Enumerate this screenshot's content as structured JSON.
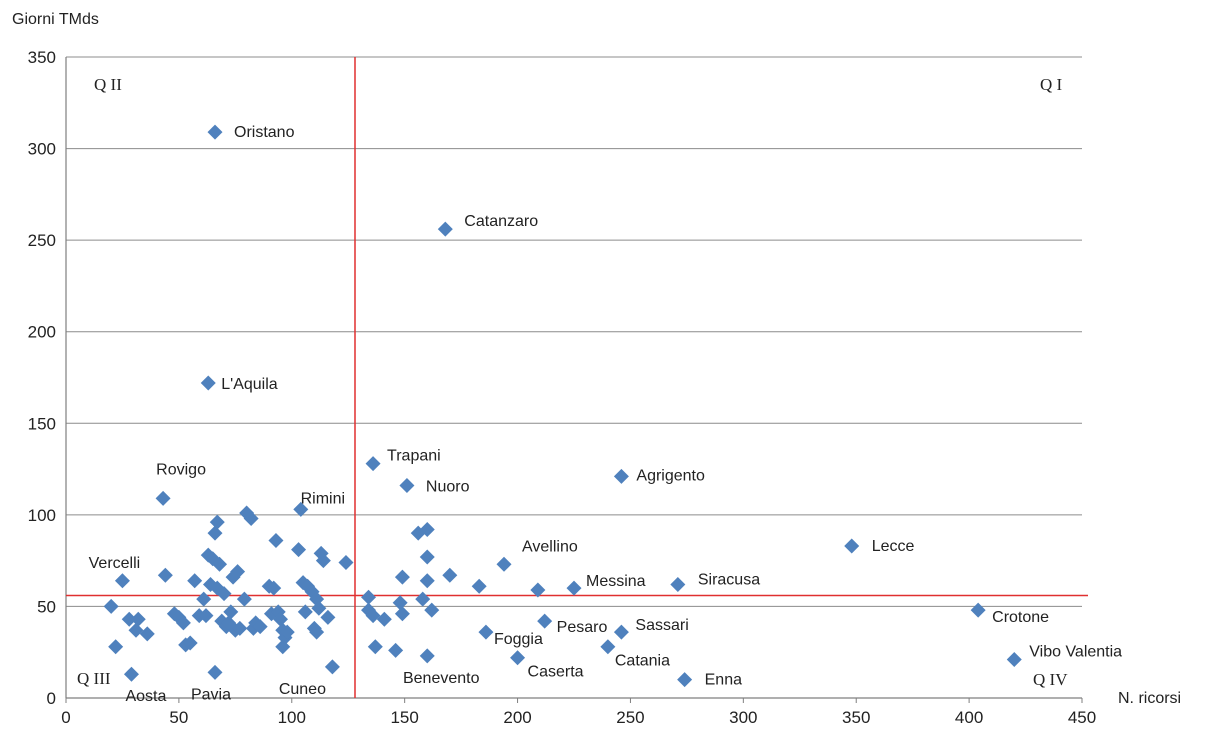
{
  "chart_data": {
    "type": "scatter",
    "ylabel": "Giorni TMds",
    "xlabel": "N. ricorsi",
    "xlim": [
      0,
      450
    ],
    "ylim": [
      0,
      350
    ],
    "x_ticks": [
      0,
      50,
      100,
      150,
      200,
      250,
      300,
      350,
      400,
      450
    ],
    "y_ticks": [
      0,
      50,
      100,
      150,
      200,
      250,
      300,
      350
    ],
    "grid": "horizontal",
    "marker": "diamond",
    "colors": {
      "points": "#4f81bd",
      "reference_lines": "#e03030",
      "grid": "#8c8c8c"
    },
    "reference_lines": {
      "vertical_x": 128,
      "horizontal_y": 56
    },
    "quadrant_labels": {
      "q1": "Q I",
      "q2": "Q II",
      "q3": "Q III",
      "q4": "Q IV"
    },
    "labeled_points": [
      {
        "label": "Oristano",
        "x": 66,
        "y": 309
      },
      {
        "label": "Catanzaro",
        "x": 168,
        "y": 256
      },
      {
        "label": "L'Aquila",
        "x": 63,
        "y": 172
      },
      {
        "label": "Trapani",
        "x": 136,
        "y": 128
      },
      {
        "label": "Nuoro",
        "x": 151,
        "y": 116
      },
      {
        "label": "Agrigento",
        "x": 246,
        "y": 121
      },
      {
        "label": "Rovigo",
        "x": 43,
        "y": 109
      },
      {
        "label": "Rimini",
        "x": 104,
        "y": 103
      },
      {
        "label": "Lecce",
        "x": 348,
        "y": 83
      },
      {
        "label": "Avellino",
        "x": 194,
        "y": 73
      },
      {
        "label": "Vercelli",
        "x": 25,
        "y": 64
      },
      {
        "label": "Messina",
        "x": 225,
        "y": 60
      },
      {
        "label": "Siracusa",
        "x": 271,
        "y": 62
      },
      {
        "label": "Crotone",
        "x": 404,
        "y": 48
      },
      {
        "label": "Pesaro",
        "x": 212,
        "y": 42
      },
      {
        "label": "Sassari",
        "x": 246,
        "y": 36
      },
      {
        "label": "Foggia",
        "x": 186,
        "y": 36
      },
      {
        "label": "Catania",
        "x": 240,
        "y": 28
      },
      {
        "label": "Vibo Valentia",
        "x": 420,
        "y": 21
      },
      {
        "label": "Caserta",
        "x": 200,
        "y": 22
      },
      {
        "label": "Benevento",
        "x": 160,
        "y": 23
      },
      {
        "label": "Enna",
        "x": 274,
        "y": 10
      },
      {
        "label": "Cuneo",
        "x": 118,
        "y": 17
      },
      {
        "label": "Aosta",
        "x": 29,
        "y": 13
      },
      {
        "label": "Pavia",
        "x": 66,
        "y": 14
      }
    ],
    "unlabeled_points": [
      {
        "x": 20,
        "y": 50
      },
      {
        "x": 22,
        "y": 28
      },
      {
        "x": 28,
        "y": 43
      },
      {
        "x": 31,
        "y": 37
      },
      {
        "x": 32,
        "y": 43
      },
      {
        "x": 36,
        "y": 35
      },
      {
        "x": 44,
        "y": 67
      },
      {
        "x": 48,
        "y": 46
      },
      {
        "x": 50,
        "y": 44
      },
      {
        "x": 52,
        "y": 41
      },
      {
        "x": 53,
        "y": 29
      },
      {
        "x": 55,
        "y": 30
      },
      {
        "x": 57,
        "y": 64
      },
      {
        "x": 59,
        "y": 45
      },
      {
        "x": 61,
        "y": 54
      },
      {
        "x": 62,
        "y": 45
      },
      {
        "x": 63,
        "y": 78
      },
      {
        "x": 64,
        "y": 62
      },
      {
        "x": 65,
        "y": 76
      },
      {
        "x": 66,
        "y": 90
      },
      {
        "x": 67,
        "y": 96
      },
      {
        "x": 67,
        "y": 60
      },
      {
        "x": 68,
        "y": 73
      },
      {
        "x": 69,
        "y": 42
      },
      {
        "x": 70,
        "y": 57
      },
      {
        "x": 71,
        "y": 39
      },
      {
        "x": 72,
        "y": 41
      },
      {
        "x": 73,
        "y": 47
      },
      {
        "x": 74,
        "y": 66
      },
      {
        "x": 75,
        "y": 37
      },
      {
        "x": 76,
        "y": 69
      },
      {
        "x": 77,
        "y": 38
      },
      {
        "x": 79,
        "y": 54
      },
      {
        "x": 80,
        "y": 101
      },
      {
        "x": 82,
        "y": 98
      },
      {
        "x": 83,
        "y": 38
      },
      {
        "x": 84,
        "y": 41
      },
      {
        "x": 86,
        "y": 39
      },
      {
        "x": 90,
        "y": 61
      },
      {
        "x": 91,
        "y": 46
      },
      {
        "x": 92,
        "y": 60
      },
      {
        "x": 93,
        "y": 86
      },
      {
        "x": 94,
        "y": 47
      },
      {
        "x": 95,
        "y": 43
      },
      {
        "x": 96,
        "y": 37
      },
      {
        "x": 96,
        "y": 28
      },
      {
        "x": 97,
        "y": 33
      },
      {
        "x": 98,
        "y": 36
      },
      {
        "x": 103,
        "y": 81
      },
      {
        "x": 105,
        "y": 63
      },
      {
        "x": 106,
        "y": 47
      },
      {
        "x": 107,
        "y": 61
      },
      {
        "x": 109,
        "y": 58
      },
      {
        "x": 110,
        "y": 38
      },
      {
        "x": 111,
        "y": 54
      },
      {
        "x": 111,
        "y": 36
      },
      {
        "x": 112,
        "y": 49
      },
      {
        "x": 113,
        "y": 79
      },
      {
        "x": 114,
        "y": 75
      },
      {
        "x": 116,
        "y": 44
      },
      {
        "x": 124,
        "y": 74
      },
      {
        "x": 134,
        "y": 55
      },
      {
        "x": 134,
        "y": 48
      },
      {
        "x": 136,
        "y": 45
      },
      {
        "x": 137,
        "y": 28
      },
      {
        "x": 141,
        "y": 43
      },
      {
        "x": 146,
        "y": 26
      },
      {
        "x": 148,
        "y": 52
      },
      {
        "x": 149,
        "y": 66
      },
      {
        "x": 149,
        "y": 46
      },
      {
        "x": 156,
        "y": 90
      },
      {
        "x": 158,
        "y": 54
      },
      {
        "x": 160,
        "y": 92
      },
      {
        "x": 160,
        "y": 77
      },
      {
        "x": 160,
        "y": 64
      },
      {
        "x": 162,
        "y": 48
      },
      {
        "x": 170,
        "y": 67
      },
      {
        "x": 183,
        "y": 61
      },
      {
        "x": 209,
        "y": 59
      }
    ]
  }
}
